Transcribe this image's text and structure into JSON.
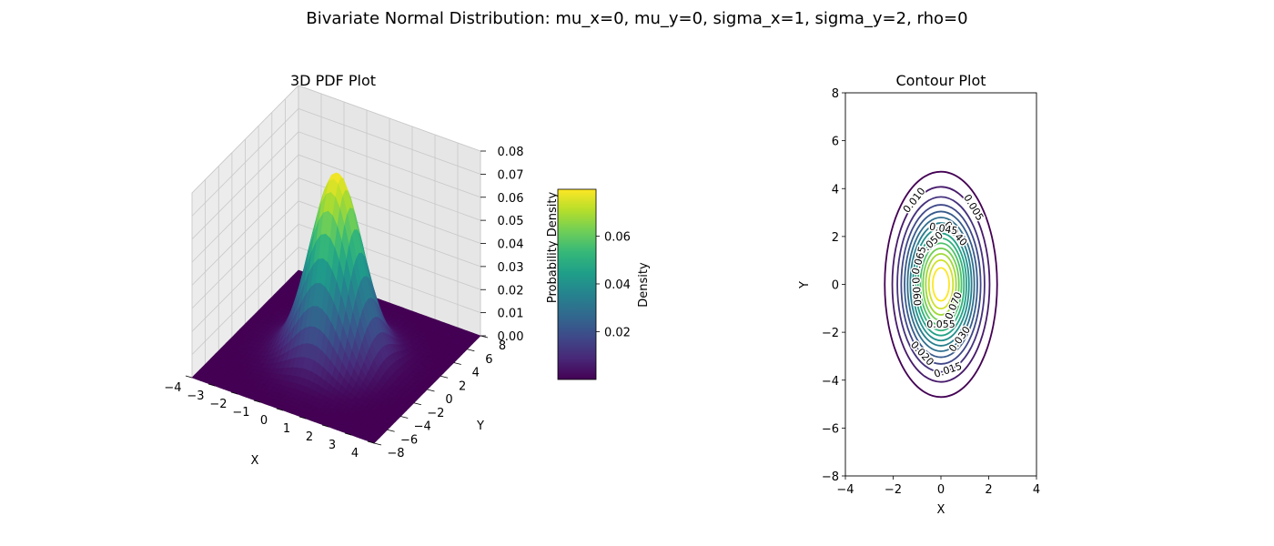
{
  "figure_title": "Bivariate Normal Distribution: mu_x=0, mu_y=0, sigma_x=1, sigma_y=2, rho=0",
  "colormap": [
    "#440154",
    "#482878",
    "#3e4989",
    "#31688e",
    "#26828e",
    "#1f9e89",
    "#35b779",
    "#6ece58",
    "#b5de2b",
    "#fde725"
  ],
  "chart_data": [
    {
      "type": "surface",
      "title": "3D PDF Plot",
      "xlabel": "X",
      "ylabel": "Y",
      "zlabel": "Probability Density",
      "xlim": [
        -4,
        4
      ],
      "ylim": [
        -8,
        8
      ],
      "zlim": [
        0,
        0.08
      ],
      "x_ticks": [
        -4,
        -3,
        -2,
        -1,
        0,
        1,
        2,
        3,
        4
      ],
      "y_ticks": [
        -8,
        -6,
        -4,
        -2,
        0,
        2,
        4,
        6,
        8
      ],
      "z_ticks": [
        "0.00",
        "0.01",
        "0.02",
        "0.03",
        "0.04",
        "0.05",
        "0.06",
        "0.07",
        "0.08"
      ],
      "function": "bivariate normal pdf",
      "mu_x": 0,
      "mu_y": 0,
      "sigma_x": 1,
      "sigma_y": 2,
      "rho": 0,
      "peak_density": 0.0796,
      "grid": true,
      "colorbar": {
        "label": "Density",
        "range": [
          0.0,
          0.0796
        ],
        "ticks": [
          "0.02",
          "0.04",
          "0.06"
        ]
      }
    },
    {
      "type": "contour",
      "title": "Contour Plot",
      "xlabel": "X",
      "ylabel": "Y",
      "xlim": [
        -4,
        4
      ],
      "ylim": [
        -8,
        8
      ],
      "x_ticks": [
        -4,
        -2,
        0,
        2,
        4
      ],
      "y_ticks": [
        -8,
        -6,
        -4,
        -2,
        0,
        2,
        4,
        6,
        8
      ],
      "levels": [
        0.005,
        0.01,
        0.015,
        0.02,
        0.025,
        0.03,
        0.035,
        0.04,
        0.045,
        0.05,
        0.055,
        0.06,
        0.065,
        0.07,
        0.075
      ],
      "labels": [
        {
          "text": "0.005",
          "level": 0.005,
          "x": 1.35,
          "y": 3.2
        },
        {
          "text": "0.010",
          "level": 0.01,
          "x": -1.1,
          "y": 3.5
        },
        {
          "text": "0.015",
          "level": 0.015,
          "x": 0.3,
          "y": -3.6
        },
        {
          "text": "0.020",
          "level": 0.02,
          "x": -0.8,
          "y": -2.9
        },
        {
          "text": "0.030",
          "level": 0.03,
          "x": 0.8,
          "y": -2.3
        },
        {
          "text": "0.040",
          "level": 0.04,
          "x": 0.6,
          "y": 2.1
        },
        {
          "text": "0.045",
          "level": 0.045,
          "x": 0.1,
          "y": 2.3
        },
        {
          "text": "0.050",
          "level": 0.05,
          "x": -0.4,
          "y": 1.7
        },
        {
          "text": "0.055",
          "level": 0.055,
          "x": 0.0,
          "y": -1.7
        },
        {
          "text": "0.060",
          "level": 0.06,
          "x": -1.05,
          "y": -0.3
        },
        {
          "text": "0.065",
          "level": 0.065,
          "x": -0.9,
          "y": 1.0
        },
        {
          "text": "0.070",
          "level": 0.07,
          "x": 0.55,
          "y": -0.9
        }
      ]
    }
  ]
}
